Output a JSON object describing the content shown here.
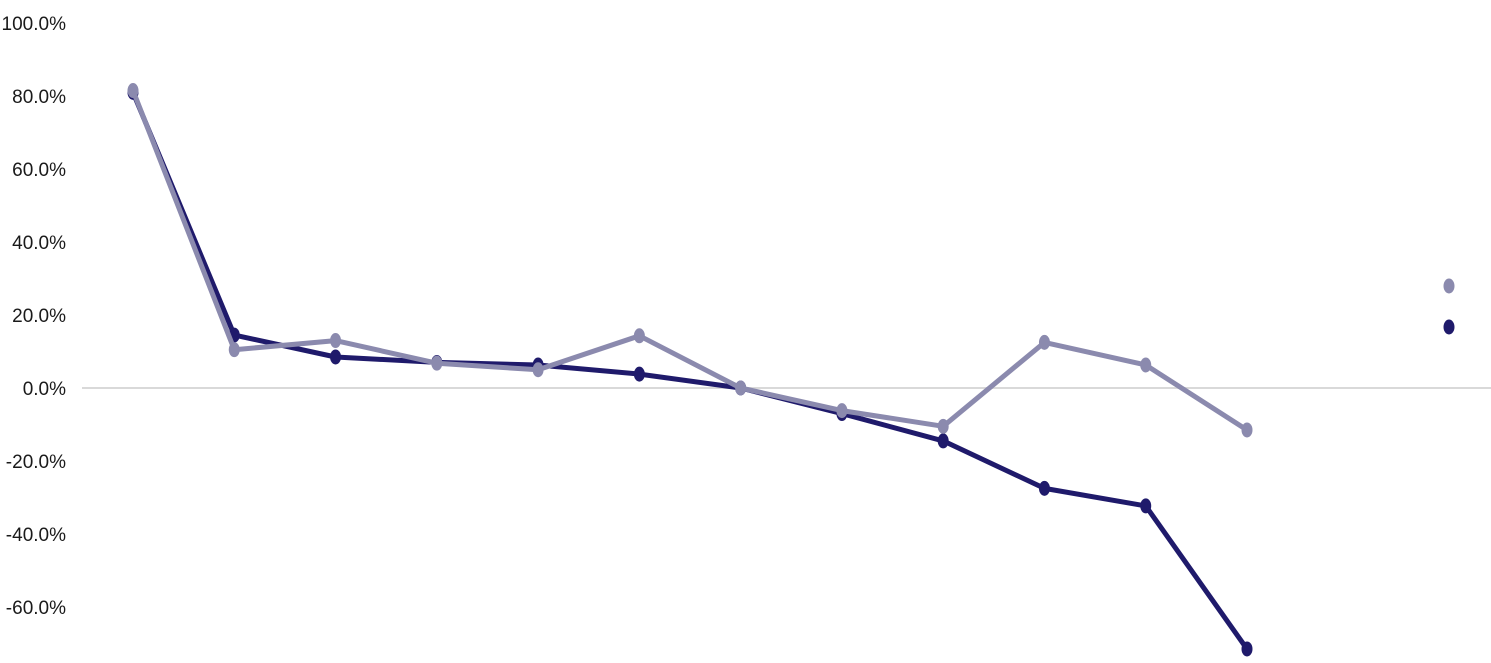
{
  "chart_data": {
    "type": "line",
    "title": "",
    "xlabel": "",
    "ylabel": "",
    "ylim": [
      -72,
      100
    ],
    "yticks": [
      "100.0%",
      "80.0%",
      "60.0%",
      "40.0%",
      "20.0%",
      "0.0%",
      "-20.0%",
      "-40.0%",
      "-60.0%"
    ],
    "ytick_values": [
      100,
      80,
      60,
      40,
      20,
      0,
      -20,
      -40,
      -60
    ],
    "x": [
      1,
      2,
      3,
      4,
      5,
      6,
      7,
      8,
      9,
      10,
      11,
      12
    ],
    "grid": "zero line only",
    "legend": {
      "placement": "right",
      "labels_shown": false
    },
    "series": [
      {
        "color": "#1f1a6b",
        "values": [
          81,
          14.5,
          8.5,
          7,
          6.3,
          3.8,
          0,
          -7,
          -14.5,
          -27.5,
          -32.3,
          -71.5
        ]
      },
      {
        "color": "#8b8aae",
        "values": [
          81.5,
          10.5,
          13,
          6.8,
          5,
          14.3,
          0,
          -6.2,
          -10.5,
          12.5,
          6.3,
          -11.5
        ]
      }
    ]
  }
}
